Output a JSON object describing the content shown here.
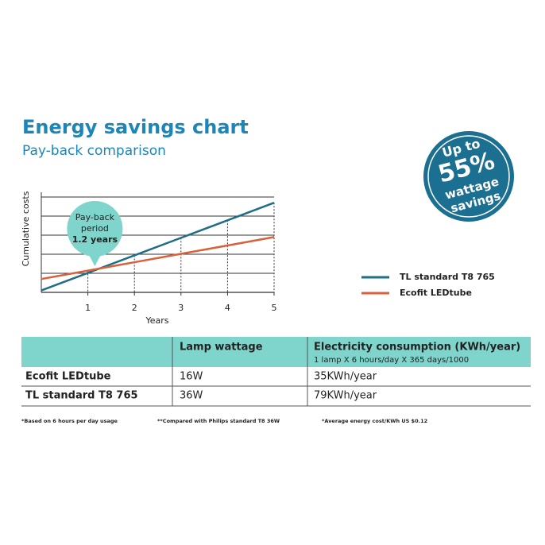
{
  "chart_data": {
    "type": "line",
    "title": "Energy savings chart",
    "subtitle": "Pay-back comparison",
    "x_label": "Years",
    "y_label": "Cumulative costs",
    "x": [
      0,
      1,
      2,
      3,
      4,
      5
    ],
    "xlim": [
      0,
      5
    ],
    "xticks": [
      1,
      2,
      3,
      4,
      5
    ],
    "ylim": [
      0,
      5
    ],
    "yticks": [
      1,
      2,
      3,
      4,
      5
    ],
    "grid": true,
    "series": [
      {
        "name": "TL standard T8 765",
        "color": "#1f6e86",
        "values": [
          0.1,
          1.02,
          1.94,
          2.86,
          3.78,
          4.7
        ]
      },
      {
        "name": "Ecofit LEDtube",
        "color": "#d9603b",
        "values": [
          0.7,
          1.14,
          1.58,
          2.02,
          2.46,
          2.9
        ]
      }
    ],
    "annotation": {
      "lines": [
        "Pay-back",
        "period",
        "1.2 years"
      ]
    }
  },
  "badge": {
    "lines": [
      "Up to",
      "55%",
      "wattage",
      "savings"
    ]
  },
  "table": {
    "header": [
      "Lamp wattage",
      "Electricity consumption (KWh/year)"
    ],
    "header_note": "1 lamp X 6 hours/day X 365 days/1000",
    "rows": [
      [
        "Ecofit LEDtube",
        "16W",
        "35KWh/year"
      ],
      [
        "TL standard T8 765",
        "36W",
        "79KWh/year"
      ]
    ]
  },
  "footnotes": [
    "*Based on 6 hours per day usage",
    "**Compared with Philips standard T8 36W",
    "*Average energy cost/KWh US $0.12"
  ]
}
